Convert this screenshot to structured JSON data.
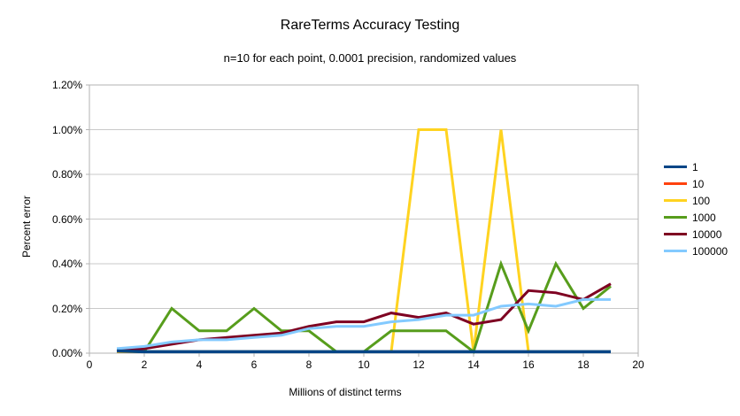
{
  "title": "RareTerms Accuracy Testing",
  "subtitle": "n=10 for each point, 0.0001 precision, randomized values",
  "chart_data": {
    "type": "line",
    "title": "RareTerms Accuracy Testing",
    "subtitle": "n=10 for each point, 0.0001 precision, randomized values",
    "xlabel": "Millions of distinct terms",
    "ylabel": "Percent error",
    "xlim": [
      0,
      20
    ],
    "ylim_percent": [
      0,
      1.2
    ],
    "grid": true,
    "legend_position": "right",
    "x_ticks": [
      0,
      2,
      4,
      6,
      8,
      10,
      12,
      14,
      16,
      18,
      20
    ],
    "x_tick_labels": [
      "0",
      "2",
      "4",
      "6",
      "8",
      "10",
      "12",
      "14",
      "16",
      "18",
      "20"
    ],
    "y_tick_values": [
      0,
      0.2,
      0.4,
      0.6,
      0.8,
      1.0,
      1.2
    ],
    "y_tick_labels": [
      "0.00%",
      "0.20%",
      "0.40%",
      "0.60%",
      "0.80%",
      "1.00%",
      "1.20%"
    ],
    "x": [
      1,
      2,
      3,
      4,
      5,
      6,
      7,
      8,
      9,
      10,
      11,
      12,
      13,
      14,
      15,
      16,
      17,
      18,
      19
    ],
    "series": [
      {
        "name": "1",
        "color": "#004586",
        "values": [
          0.01,
          0,
          0,
          0,
          0,
          0,
          0,
          0,
          0,
          0,
          0,
          0,
          0,
          0,
          0,
          0,
          0,
          0,
          0
        ]
      },
      {
        "name": "10",
        "color": "#ff420e",
        "values": [
          0,
          0,
          0,
          0,
          0,
          0,
          0,
          0,
          0,
          0,
          0,
          0,
          0,
          0,
          0,
          0,
          0,
          0,
          0
        ]
      },
      {
        "name": "100",
        "color": "#ffd320",
        "values": [
          0,
          0,
          0,
          0,
          0,
          0,
          0,
          0,
          0,
          0,
          0,
          1.0,
          1.0,
          0,
          1.0,
          0,
          0,
          0,
          0
        ]
      },
      {
        "name": "1000",
        "color": "#579d1c",
        "values": [
          0.01,
          0,
          0.2,
          0.1,
          0.1,
          0.2,
          0.1,
          0.1,
          0,
          0,
          0.1,
          0.1,
          0.1,
          0,
          0.4,
          0.1,
          0.4,
          0.2,
          0.3
        ]
      },
      {
        "name": "10000",
        "color": "#7e0021",
        "values": [
          0.01,
          0.02,
          0.04,
          0.06,
          0.07,
          0.08,
          0.09,
          0.12,
          0.14,
          0.14,
          0.18,
          0.16,
          0.18,
          0.13,
          0.15,
          0.28,
          0.27,
          0.24,
          0.31
        ]
      },
      {
        "name": "100000",
        "color": "#83caff",
        "values": [
          0.02,
          0.03,
          0.05,
          0.06,
          0.06,
          0.07,
          0.08,
          0.11,
          0.12,
          0.12,
          0.14,
          0.15,
          0.17,
          0.17,
          0.21,
          0.22,
          0.21,
          0.24,
          0.24
        ]
      }
    ],
    "colors": {
      "grid": "#c9c9c9",
      "axis": "#b3b3b3",
      "text": "#000000",
      "background": "#ffffff"
    }
  }
}
